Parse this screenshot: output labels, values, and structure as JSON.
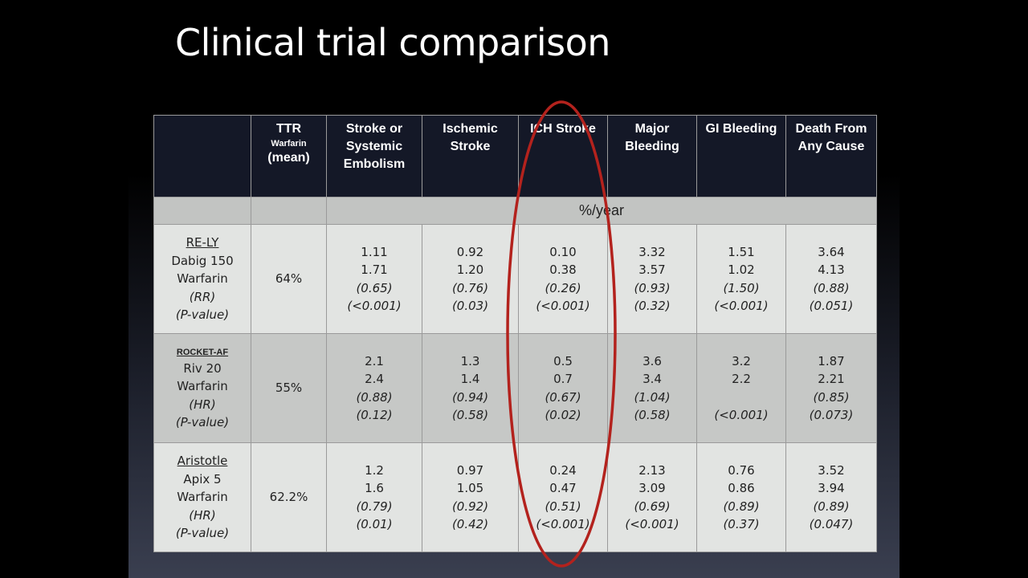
{
  "title": "Clinical trial comparison",
  "table": {
    "headers": [
      {
        "main": "",
        "sub": "",
        "tail": ""
      },
      {
        "main": "TTR",
        "sub": "Warfarin",
        "tail": "(mean)"
      },
      {
        "main": "Stroke or Systemic Embolism",
        "sub": "",
        "tail": ""
      },
      {
        "main": "Ischemic Stroke",
        "sub": "",
        "tail": ""
      },
      {
        "main": "ICH Stroke",
        "sub": "",
        "tail": ""
      },
      {
        "main": "Major Bleeding",
        "sub": "",
        "tail": ""
      },
      {
        "main": "GI Bleeding",
        "sub": "",
        "tail": ""
      },
      {
        "main": "Death From Any Cause",
        "sub": "",
        "tail": ""
      }
    ],
    "unit_label": "%/year",
    "rows": [
      {
        "trial": "RE-LY",
        "drug": "Dabig 150",
        "comparator": "Warfarin",
        "ratio_label": "(RR)",
        "p_label": "(P-value)",
        "ttr": "64%",
        "values": [
          [
            "1.11",
            "1.71",
            "(0.65)",
            "(<0.001)"
          ],
          [
            "0.92",
            "1.20",
            "(0.76)",
            "(0.03)"
          ],
          [
            "0.10",
            "0.38",
            "(0.26)",
            "(<0.001)"
          ],
          [
            "3.32",
            "3.57",
            "(0.93)",
            "(0.32)"
          ],
          [
            "1.51",
            "1.02",
            "(1.50)",
            "(<0.001)"
          ],
          [
            "3.64",
            "4.13",
            "(0.88)",
            "(0.051)"
          ]
        ]
      },
      {
        "trial": "ROCKET-AF",
        "drug": "Riv 20",
        "comparator": "Warfarin",
        "ratio_label": "(HR)",
        "p_label": "(P-value)",
        "ttr": "55%",
        "values": [
          [
            "2.1",
            "2.4",
            "(0.88)",
            "(0.12)"
          ],
          [
            "1.3",
            "1.4",
            "(0.94)",
            "(0.58)"
          ],
          [
            "0.5",
            "0.7",
            "(0.67)",
            "(0.02)"
          ],
          [
            "3.6",
            "3.4",
            "(1.04)",
            "(0.58)"
          ],
          [
            "3.2",
            "2.2",
            "",
            "(<0.001)"
          ],
          [
            "1.87",
            "2.21",
            "(0.85)",
            "(0.073)"
          ]
        ]
      },
      {
        "trial": "Aristotle",
        "drug": "Apix 5",
        "comparator": "Warfarin",
        "ratio_label": "(HR)",
        "p_label": "(P-value)",
        "ttr": "62.2%",
        "values": [
          [
            "1.2",
            "1.6",
            "(0.79)",
            "(0.01)"
          ],
          [
            "0.97",
            "1.05",
            "(0.92)",
            "(0.42)"
          ],
          [
            "0.24",
            "0.47",
            "(0.51)",
            "(<0.001)"
          ],
          [
            "2.13",
            "3.09",
            "(0.69)",
            "(<0.001)"
          ],
          [
            "0.76",
            "0.86",
            "(0.89)",
            "(0.37)"
          ],
          [
            "3.52",
            "3.94",
            "(0.89)",
            "(0.047)"
          ]
        ]
      }
    ]
  },
  "highlight_color": "#b3221d"
}
